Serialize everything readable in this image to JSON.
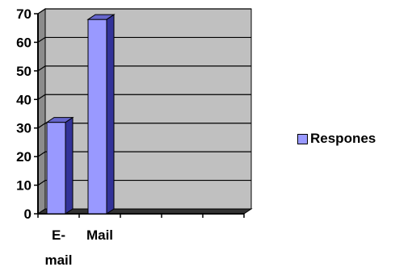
{
  "chart_data": {
    "type": "bar",
    "categories": [
      "E-mail",
      "Mail",
      "",
      "",
      ""
    ],
    "category_label_lines": [
      [
        "E-",
        "mail"
      ],
      [
        "Mail"
      ],
      [
        ""
      ],
      [
        ""
      ],
      [
        ""
      ]
    ],
    "series": [
      {
        "name": "Respones",
        "values": [
          32,
          68,
          null,
          null,
          null
        ],
        "color": "#9999ff"
      }
    ],
    "yticks": [
      0,
      10,
      20,
      30,
      40,
      50,
      60,
      70
    ],
    "ylim": [
      0,
      70
    ],
    "title": "",
    "xlabel": "",
    "ylabel": "",
    "grid": true,
    "legend_position": "right",
    "plot_background": "#c0c0c0",
    "style": "3d-column"
  }
}
